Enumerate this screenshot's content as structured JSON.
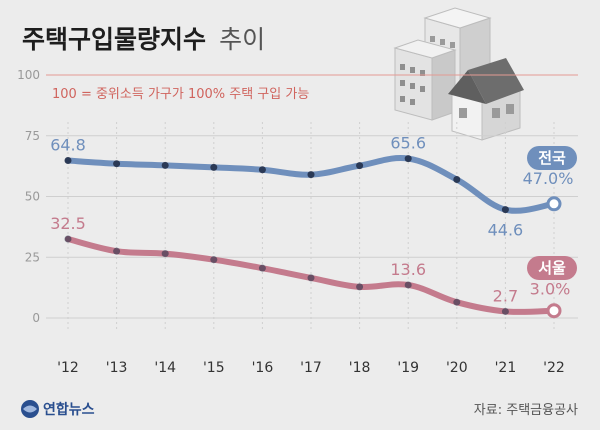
{
  "title_bold": "주택구입물량지수",
  "title_light": "추이",
  "reference_note": "100 = 중위소득 가구가 100% 주택 구입 가능",
  "source": "자료: 주택금융공사",
  "logo": "연합뉴스",
  "colors": {
    "national": "#6f8fbc",
    "seoul": "#c47b8d",
    "reference_line": "#e39a93",
    "grid": "#cfcfcf"
  },
  "chart_data": {
    "type": "line",
    "title": "주택구입물량지수 추이",
    "categories": [
      "'12",
      "'13",
      "'14",
      "'15",
      "'16",
      "'17",
      "'18",
      "'19",
      "'20",
      "'21",
      "'22"
    ],
    "ylim": [
      0,
      100
    ],
    "y_ticks": [
      "0",
      "25",
      "50",
      "75",
      "100"
    ],
    "grid": true,
    "reference_line": 100,
    "series": [
      {
        "name": "전국",
        "values": [
          64.8,
          63.5,
          62.8,
          62.0,
          61.0,
          59.0,
          62.7,
          65.6,
          57.0,
          44.6,
          47.0
        ],
        "labels": [
          {
            "index": 0,
            "text": "64.8"
          },
          {
            "index": 7,
            "text": "65.6"
          },
          {
            "index": 9,
            "text": "44.6"
          },
          {
            "index": 10,
            "text": "47.0%"
          }
        ]
      },
      {
        "name": "서울",
        "values": [
          32.5,
          27.5,
          26.5,
          24.0,
          20.5,
          16.5,
          12.8,
          13.6,
          6.5,
          2.7,
          3.0
        ],
        "labels": [
          {
            "index": 0,
            "text": "32.5"
          },
          {
            "index": 7,
            "text": "13.6"
          },
          {
            "index": 9,
            "text": "2.7"
          },
          {
            "index": 10,
            "text": "3.0%"
          }
        ]
      }
    ]
  }
}
